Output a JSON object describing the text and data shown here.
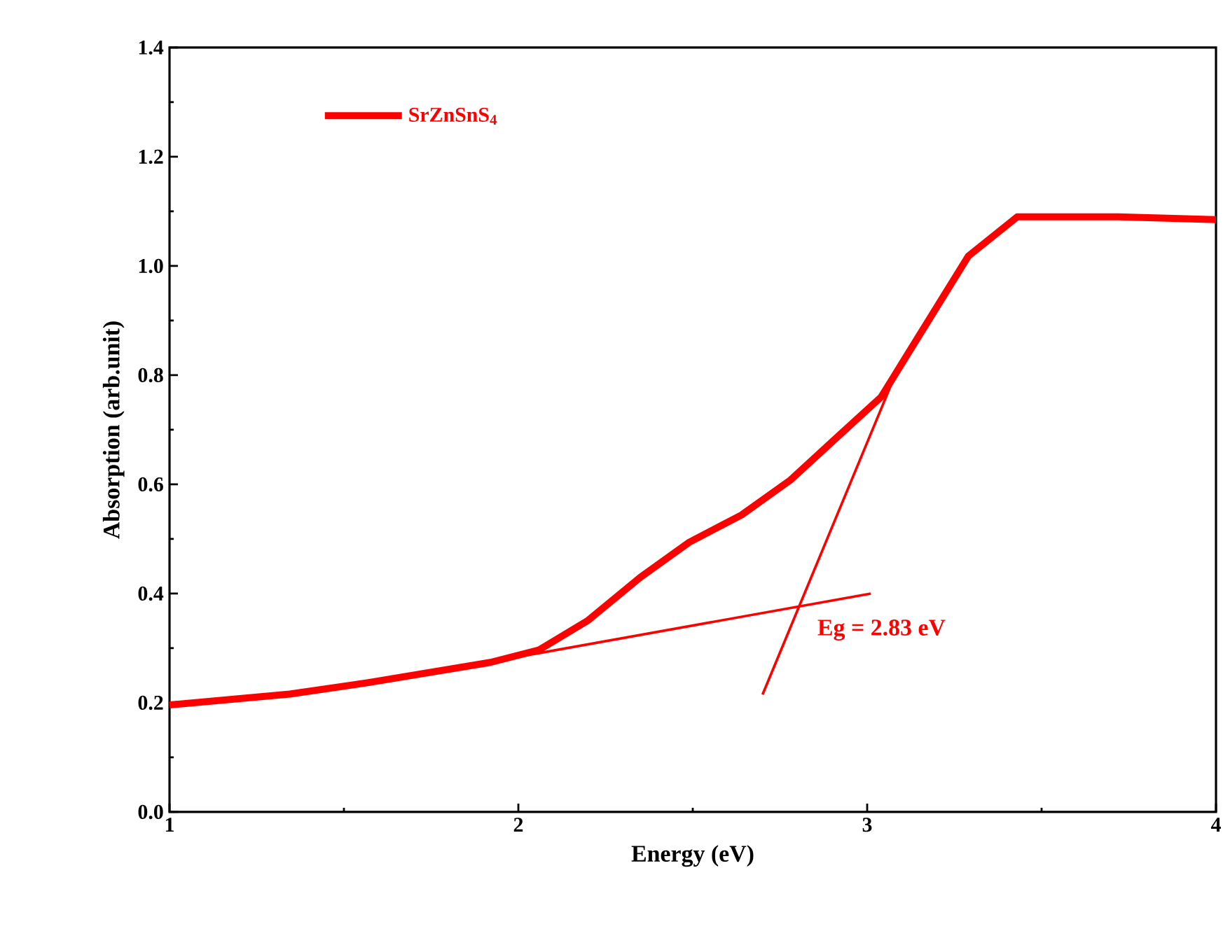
{
  "chart_data": {
    "type": "line",
    "xlabel": "Energy (eV)",
    "ylabel": "Absorption (arb.unit)",
    "xlim": [
      1,
      4
    ],
    "ylim": [
      0,
      1.4
    ],
    "xticks": [
      1,
      2,
      3,
      4
    ],
    "yticks": [
      {
        "value": 0,
        "label": "0.0"
      },
      {
        "value": 0.2,
        "label": "0.2"
      },
      {
        "value": 0.4,
        "label": "0.4"
      },
      {
        "value": 0.6,
        "label": "0.6"
      },
      {
        "value": 0.8,
        "label": "0.8"
      },
      {
        "value": 1.0,
        "label": "1.0"
      },
      {
        "value": 1.2,
        "label": "1.2"
      },
      {
        "value": 1.4,
        "label": "1.4"
      }
    ],
    "series": [
      {
        "name": "SrZnSnS$_{4}$",
        "color": "#ff0000",
        "x": [
          1,
          1.345,
          1.57,
          1.92,
          2.06,
          2.2,
          2.35,
          2.49,
          2.64,
          2.78,
          2.92,
          3.04,
          3.19,
          3.29,
          3.43,
          3.72,
          4
        ],
        "values": [
          0.196,
          0.216,
          0.237,
          0.274,
          0.297,
          0.351,
          0.43,
          0.494,
          0.544,
          0.608,
          0.69,
          0.76,
          0.915,
          1.018,
          1.09,
          1.09,
          1.085
        ]
      },
      {
        "color": "#ff0000",
        "x": [
          1.92,
          3.01
        ],
        "values": [
          0.275,
          0.4
        ]
      },
      {
        "color": "#ff0000",
        "x": [
          2.7,
          3.08
        ],
        "values": [
          0.215,
          0.8
        ]
      }
    ],
    "annotations": [
      {
        "text": "Eg = 2.83 eV",
        "x": 2.83,
        "y": 0.375
      }
    ],
    "legend": "top left",
    "marker": "none",
    "line_style": "solid",
    "grid": false
  }
}
